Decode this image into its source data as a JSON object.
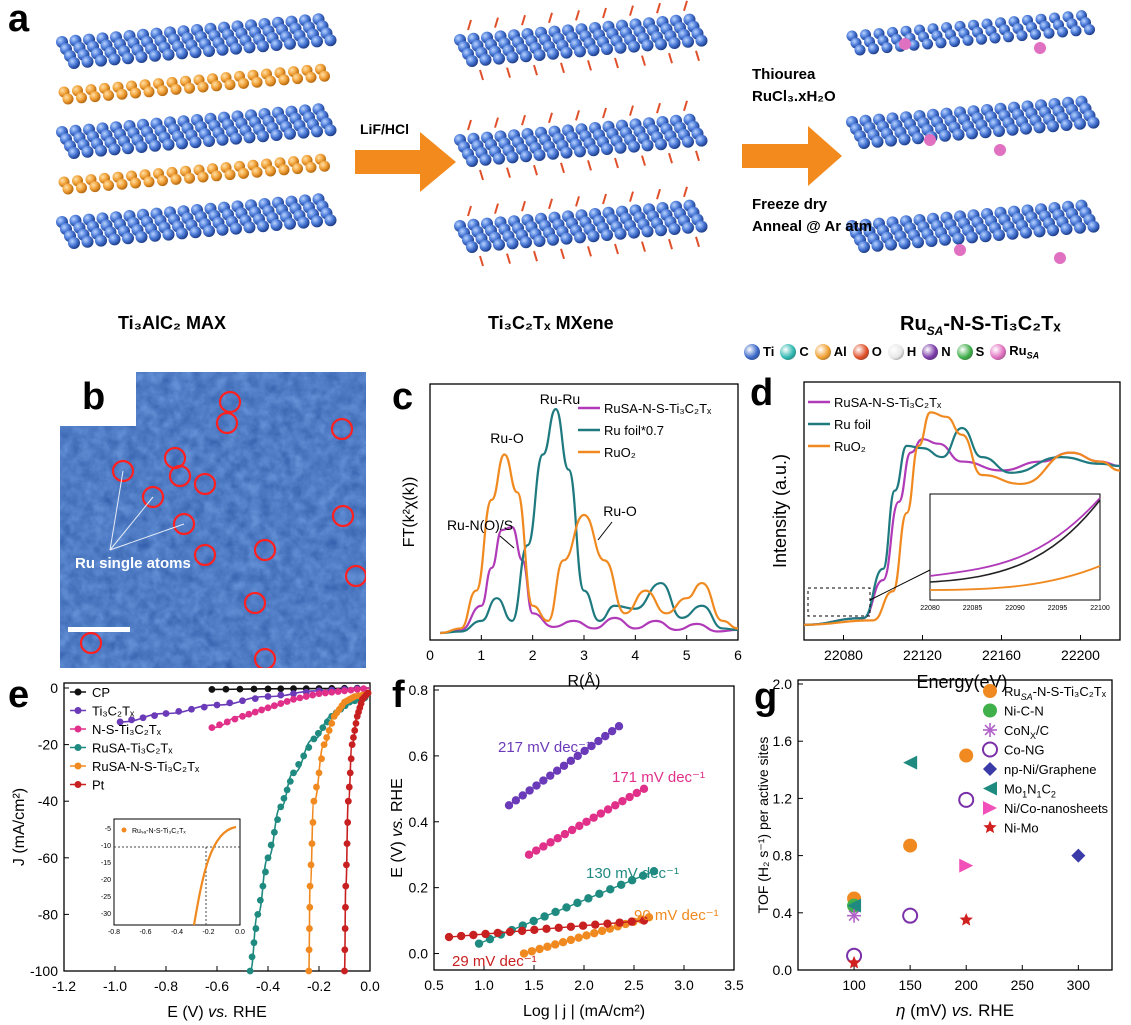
{
  "panel_a": {
    "letter": "a",
    "max_label": "Ti₃AlC₂ MAX",
    "mxene_label": "Ti₃C₂Tₓ MXene",
    "ru_label": "Ru",
    "ru_sub": "SA",
    "ru_rest": "-N-S-Ti₃C₂Tₓ",
    "arrow1_text": "LiF/HCl",
    "arrow2_top1": "Thiourea",
    "arrow2_top2": "RuCl₃.xH₂O",
    "arrow2_bot1": "Freeze dry",
    "arrow2_bot2": "Anneal @ Ar atm",
    "legend": [
      {
        "label": "Ti",
        "color": "#3a67c8"
      },
      {
        "label": "C",
        "color": "#2fb7b0"
      },
      {
        "label": "Al",
        "color": "#f0a030"
      },
      {
        "label": "O",
        "color": "#e0502a"
      },
      {
        "label": "H",
        "color": "#e8e8e8"
      },
      {
        "label": "N",
        "color": "#7a3aa8"
      },
      {
        "label": "S",
        "color": "#3fae4a"
      },
      {
        "label": "Ru",
        "sub": "SA",
        "color": "#e070c0"
      }
    ]
  },
  "panel_b": {
    "letter": "b",
    "annotation": "Ru single atoms"
  },
  "chart_data": [
    {
      "panel": "c",
      "type": "line",
      "xlabel": "R(Å)",
      "ylabel": "FT(k²χ(k))",
      "xlim": [
        0,
        6
      ],
      "xticks": [
        "0",
        "1",
        "2",
        "3",
        "4",
        "5",
        "6"
      ],
      "legend": [
        "Ru_SA-N-S-Ti3C2Tx",
        "Ru foil*0.7",
        "RuO2"
      ],
      "annotations": [
        "Ru-Ru",
        "Ru-O",
        "Ru-N(O)/S",
        "Ru-O"
      ],
      "series": [
        {
          "name": "Ru_SA-N-S-Ti3C2Tx",
          "color": "#b03ab8",
          "x": [
            0.2,
            0.6,
            1.0,
            1.2,
            1.4,
            1.6,
            1.8,
            2.0,
            2.4,
            2.8,
            3.2,
            3.6,
            4.0,
            4.4,
            4.8,
            5.2,
            5.6,
            6.0
          ],
          "y": [
            0.02,
            0.04,
            0.2,
            0.45,
            0.7,
            0.72,
            0.5,
            0.15,
            0.06,
            0.1,
            0.05,
            0.12,
            0.05,
            0.1,
            0.04,
            0.08,
            0.03,
            0.04
          ]
        },
        {
          "name": "Ru foil*0.7",
          "color": "#1f7a80",
          "x": [
            0.2,
            0.6,
            1.0,
            1.3,
            1.6,
            1.9,
            2.2,
            2.45,
            2.7,
            3.0,
            3.3,
            3.6,
            4.0,
            4.5,
            4.9,
            5.3,
            5.7,
            6.0
          ],
          "y": [
            0.02,
            0.03,
            0.1,
            0.25,
            0.1,
            0.6,
            1.2,
            1.5,
            1.1,
            0.3,
            0.1,
            0.2,
            0.18,
            0.35,
            0.12,
            0.2,
            0.05,
            0.04
          ]
        },
        {
          "name": "RuO2",
          "color": "#f08a20",
          "x": [
            0.2,
            0.6,
            0.9,
            1.2,
            1.45,
            1.7,
            2.0,
            2.3,
            2.6,
            3.0,
            3.4,
            3.8,
            4.2,
            4.6,
            5.0,
            5.3,
            5.7,
            6.0
          ],
          "y": [
            0.02,
            0.05,
            0.3,
            0.9,
            1.2,
            0.95,
            0.2,
            0.1,
            0.5,
            0.8,
            0.5,
            0.15,
            0.3,
            0.15,
            0.25,
            0.35,
            0.1,
            0.05
          ]
        }
      ]
    },
    {
      "panel": "d",
      "type": "line",
      "xlabel": "Energy(eV)",
      "ylabel": "Intensity (a.u.)",
      "xlim": [
        22060,
        22220
      ],
      "xticks": [
        "22080",
        "22120",
        "22160",
        "22200"
      ],
      "inset_xticks": [
        "22080",
        "22085",
        "22090",
        "22095",
        "22100"
      ],
      "legend": [
        "Ru_SA-N-S-Ti3C2Tx",
        "Ru foil",
        "RuO2"
      ],
      "series": [
        {
          "name": "Ru_SA-N-S-Ti3C2Tx",
          "color": "#b03ab8",
          "x": [
            22060,
            22090,
            22100,
            22108,
            22114,
            22120,
            22128,
            22140,
            22160,
            22180,
            22195,
            22210,
            22220
          ],
          "y": [
            0.05,
            0.08,
            0.25,
            0.6,
            0.82,
            0.88,
            0.86,
            0.78,
            0.74,
            0.78,
            0.82,
            0.78,
            0.76
          ]
        },
        {
          "name": "Ru foil",
          "color": "#1f7a80",
          "x": [
            22060,
            22090,
            22100,
            22106,
            22112,
            22120,
            22130,
            22140,
            22150,
            22165,
            22190,
            22210,
            22220
          ],
          "y": [
            0.05,
            0.08,
            0.3,
            0.65,
            0.85,
            0.84,
            0.8,
            0.93,
            0.8,
            0.73,
            0.8,
            0.77,
            0.76
          ]
        },
        {
          "name": "RuO2",
          "color": "#f08a20",
          "x": [
            22060,
            22095,
            22105,
            22112,
            22118,
            22124,
            22132,
            22140,
            22150,
            22170,
            22195,
            22210,
            22220
          ],
          "y": [
            0.05,
            0.07,
            0.2,
            0.55,
            0.85,
            1.0,
            0.98,
            0.9,
            0.72,
            0.68,
            0.82,
            0.78,
            0.74
          ]
        }
      ]
    },
    {
      "panel": "e",
      "type": "line",
      "xlabel": "E (V) vs. RHE",
      "ylabel": "J (mA/cm²)",
      "xlim": [
        -1.2,
        0.0
      ],
      "ylim": [
        -100,
        0
      ],
      "xticks": [
        "-1.2",
        "-1.0",
        "-0.8",
        "-0.6",
        "-0.4",
        "-0.2",
        "0.0"
      ],
      "yticks": [
        "0",
        "-20",
        "-40",
        "-60",
        "-80",
        "-100"
      ],
      "legend": [
        "CP",
        "Ti3C2Tx",
        "N-S-Ti3C2Tx",
        "Ru_SA-Ti3C2Tx",
        "Ru_SA-N-S-Ti3C2Tx",
        "Pt"
      ],
      "inset": {
        "xticks": [
          "-0.8",
          "-0.6",
          "-0.4",
          "-0.2",
          "0.0"
        ],
        "yticks": [
          "-5",
          "-10",
          "-15",
          "-20",
          "-25",
          "-30"
        ],
        "legend": "Ru_SA-N-S-Ti3C2Tx"
      },
      "series": [
        {
          "name": "CP",
          "color": "#111111",
          "x": [
            -0.62,
            -0.4,
            -0.2,
            0.0
          ],
          "y": [
            -0.5,
            -0.3,
            -0.2,
            0
          ]
        },
        {
          "name": "Ti3C2Tx",
          "color": "#6a3ab8",
          "x": [
            -0.98,
            -0.8,
            -0.6,
            -0.4,
            -0.2,
            0.0
          ],
          "y": [
            -12,
            -9,
            -6,
            -3,
            -1,
            0
          ]
        },
        {
          "name": "N-S-Ti3C2Tx",
          "color": "#e0308a",
          "x": [
            -0.62,
            -0.5,
            -0.4,
            -0.3,
            -0.2,
            -0.1,
            0.0
          ],
          "y": [
            -14,
            -10,
            -7,
            -4,
            -2,
            -1,
            0
          ]
        },
        {
          "name": "Ru_SA-Ti3C2Tx",
          "color": "#1f8a80",
          "x": [
            -0.47,
            -0.44,
            -0.4,
            -0.35,
            -0.3,
            -0.22,
            -0.15,
            -0.08,
            0.0
          ],
          "y": [
            -100,
            -80,
            -60,
            -42,
            -30,
            -18,
            -10,
            -5,
            -3
          ]
        },
        {
          "name": "Ru_SA-N-S-Ti3C2Tx",
          "color": "#f08a20",
          "x": [
            -0.24,
            -0.235,
            -0.22,
            -0.18,
            -0.14,
            -0.1,
            -0.06,
            0.0
          ],
          "y": [
            -100,
            -70,
            -40,
            -20,
            -10,
            -5,
            -3,
            -2
          ]
        },
        {
          "name": "Pt",
          "color": "#c82020",
          "x": [
            -0.1,
            -0.095,
            -0.085,
            -0.07,
            -0.05,
            -0.03,
            0.0
          ],
          "y": [
            -100,
            -70,
            -40,
            -20,
            -10,
            -4,
            -1
          ]
        }
      ]
    },
    {
      "panel": "f",
      "type": "line",
      "xlabel": "Log | j | (mA/cm²)",
      "ylabel": "E (V) vs. RHE",
      "xlim": [
        0.5,
        3.5
      ],
      "ylim": [
        -0.05,
        0.8
      ],
      "xticks": [
        "0.5",
        "1.0",
        "1.5",
        "2.0",
        "2.5",
        "3.0",
        "3.5"
      ],
      "yticks": [
        "0.0",
        "0.2",
        "0.4",
        "0.6",
        "0.8"
      ],
      "annotations": [
        "217 mV dec⁻¹",
        "171 mV dec⁻¹",
        "130 mV dec⁻¹",
        "90 mV dec⁻¹",
        "29 mV dec⁻¹"
      ],
      "series": [
        {
          "name": "217",
          "color": "#6a3ab8",
          "x": [
            1.25,
            2.35
          ],
          "y": [
            0.45,
            0.69
          ]
        },
        {
          "name": "171",
          "color": "#e0308a",
          "x": [
            1.45,
            2.6
          ],
          "y": [
            0.3,
            0.5
          ]
        },
        {
          "name": "130",
          "color": "#1f8a80",
          "x": [
            0.95,
            2.7
          ],
          "y": [
            0.03,
            0.25
          ]
        },
        {
          "name": "90",
          "color": "#f08a20",
          "x": [
            1.4,
            2.65
          ],
          "y": [
            0.0,
            0.11
          ]
        },
        {
          "name": "29",
          "color": "#c82020",
          "x": [
            0.65,
            2.6
          ],
          "y": [
            0.05,
            0.1
          ]
        }
      ]
    },
    {
      "panel": "g",
      "type": "scatter",
      "xlabel": "η (mV) vs. RHE",
      "ylabel": "TOF (H₂ s⁻¹) per active sites",
      "xlim": [
        50,
        330
      ],
      "ylim": [
        0,
        2.0
      ],
      "xticks": [
        "100",
        "150",
        "200",
        "250",
        "300"
      ],
      "yticks": [
        "0.0",
        "0.4",
        "0.8",
        "1.2",
        "1.6",
        "2.0"
      ],
      "series": [
        {
          "name": "Ru_SA-N-S-Ti3C2Tx",
          "color": "#f08a20",
          "marker": "circle",
          "x": [
            100,
            150,
            200
          ],
          "y": [
            0.5,
            0.87,
            1.5
          ]
        },
        {
          "name": "Ni-C-N",
          "color": "#3fb04a",
          "marker": "circle",
          "x": [
            100
          ],
          "y": [
            0.45
          ]
        },
        {
          "name": "CoNx/C",
          "color": "#b060c8",
          "marker": "asterisk",
          "x": [
            100
          ],
          "y": [
            0.38
          ]
        },
        {
          "name": "Co-NG",
          "color": "#7a30a8",
          "marker": "open-circle",
          "x": [
            100,
            150,
            200
          ],
          "y": [
            0.1,
            0.38,
            1.19
          ]
        },
        {
          "name": "np-Ni/Graphene",
          "color": "#3a3aa8",
          "marker": "diamond",
          "x": [
            300
          ],
          "y": [
            0.8
          ]
        },
        {
          "name": "Mo1N1C2",
          "color": "#1f8a80",
          "marker": "triangle-left",
          "x": [
            100,
            150
          ],
          "y": [
            0.45,
            1.45
          ]
        },
        {
          "name": "Ni/Co-nanosheets",
          "color": "#f050b8",
          "marker": "triangle-right",
          "x": [
            200
          ],
          "y": [
            0.73
          ]
        },
        {
          "name": "Ni-Mo",
          "color": "#d02020",
          "marker": "star",
          "x": [
            100,
            200
          ],
          "y": [
            0.05,
            0.35
          ]
        }
      ]
    }
  ],
  "labels": {
    "c_legend": [
      "Ru",
      "SA",
      "-N-S-Ti₃C₂Tₓ",
      "Ru foil*0.7",
      "RuO₂"
    ],
    "d_legend": [
      "Ru",
      "SA",
      "-N-S-Ti₃C₂Tₓ",
      "Ru foil",
      "RuO₂"
    ],
    "e_legend": [
      "CP",
      "Ti₃C₂Tₓ",
      "N-S-Ti₃C₂Tₓ",
      "Ru",
      "SA",
      "-Ti₃C₂Tₓ",
      "Ru",
      "SA",
      "-N-S-Ti₃C₂Tₓ",
      "Pt"
    ],
    "e_inset_legend": "Ruₛₐ-N-S-Ti₃C₂Tₓ",
    "g_legend": [
      "Ru",
      "SA",
      "-N-S-Ti₃C₂Tₓ",
      "Ni-C-N",
      "CoN",
      "X",
      "/C",
      "Co-NG",
      "np-Ni/Graphene",
      "Mo",
      "1",
      "N",
      "1",
      "C",
      "2",
      "Ni/Co-nanosheets",
      "Ni-Mo"
    ],
    "f_slopes": [
      "217 mV dec⁻¹",
      "171 mV dec⁻¹",
      "130 mV dec⁻¹",
      "90 mV dec⁻¹",
      "29 mV dec⁻¹"
    ],
    "e_xlabel": [
      "E (V) ",
      "vs.",
      " RHE"
    ],
    "f_ylabel": [
      "E (V) ",
      "vs.",
      " RHE"
    ],
    "g_xlabel": [
      "η",
      " (mV) ",
      "vs.",
      " RHE"
    ]
  }
}
